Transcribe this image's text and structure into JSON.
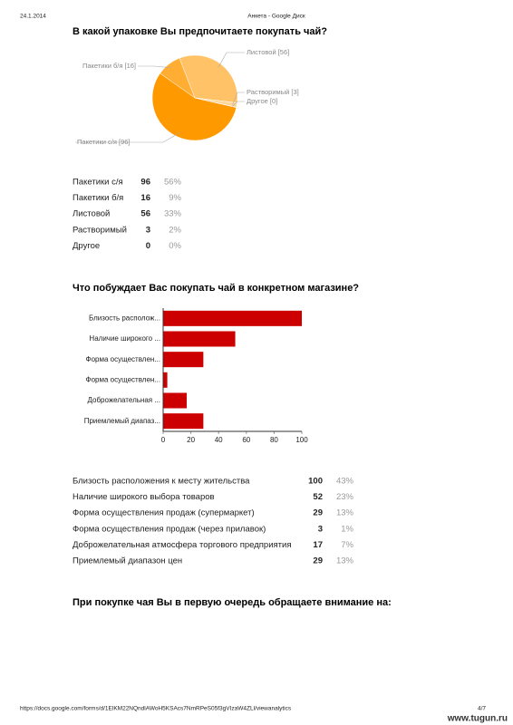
{
  "header": {
    "date": "24.1.2014",
    "title": "Анкета - Google Диск"
  },
  "sections": [
    {
      "question": "В какой упаковке Вы предпочитаете покупать чай?",
      "chart_data": {
        "type": "pie",
        "categories": [
          "Пакетики с/я",
          "Пакетики б/я",
          "Листовой",
          "Растворимый",
          "Другое"
        ],
        "labels": [
          "Пакетики с/я [96]",
          "Пакетики б/я [16]",
          "Листовой [56]",
          "Растворимый [3]",
          "Другое [0]"
        ],
        "values": [
          96,
          16,
          56,
          3,
          0
        ],
        "colors": [
          "#ff9900",
          "#ffad33",
          "#ffc266",
          "#ffd699",
          "#ffe6bf"
        ]
      },
      "table": {
        "rows": [
          [
            "Пакетики с/я",
            "96",
            "56%"
          ],
          [
            "Пакетики б/я",
            "16",
            "9%"
          ],
          [
            "Листовой",
            "56",
            "33%"
          ],
          [
            "Растворимый",
            "3",
            "2%"
          ],
          [
            "Другое",
            "0",
            "0%"
          ]
        ]
      }
    },
    {
      "question": "Что побуждает Вас покупать чай в конкретном магазине?",
      "chart_data": {
        "type": "bar",
        "categories": [
          "Близость располож...",
          "Наличие широкого ...",
          "Форма осуществлен...",
          "Форма осуществлен...",
          "Доброжелательная ...",
          "Приемлемый диапаз..."
        ],
        "values": [
          100,
          52,
          29,
          3,
          17,
          29
        ],
        "color": "#cc0000",
        "xlim": [
          0,
          100
        ],
        "xticks": [
          0,
          20,
          40,
          60,
          80,
          100
        ]
      },
      "table": {
        "rows": [
          [
            "Близость расположения к месту жительства",
            "100",
            "43%"
          ],
          [
            "Наличие широкого выбора товаров",
            "52",
            "23%"
          ],
          [
            "Форма осуществления продаж (супермаркет)",
            "29",
            "13%"
          ],
          [
            "Форма осуществления продаж (через прилавок)",
            "3",
            "1%"
          ],
          [
            "Доброжелательная атмосфера торгового предприятия",
            "17",
            "7%"
          ],
          [
            "Приемлемый диапазон цен",
            "29",
            "13%"
          ]
        ]
      }
    },
    {
      "question": "При покупке чая Вы в первую очередь обращаете внимание на:"
    }
  ],
  "footer": {
    "url": "https://docs.google.com/forms/d/1ElKM22NQndlAWoH5KSAcs7NmRPeS05f3gVIzaW4ZLl/viewanalytics",
    "page": "4/7",
    "watermark": "www.tugun.ru"
  }
}
